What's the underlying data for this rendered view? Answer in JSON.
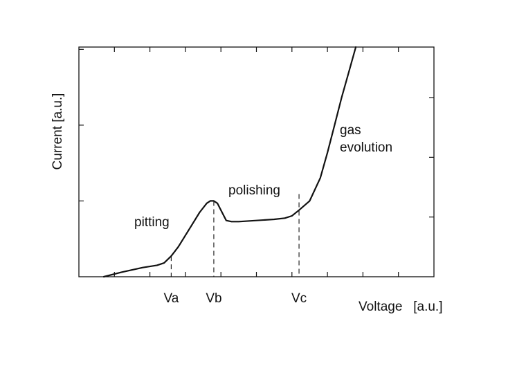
{
  "chart_data": {
    "type": "line",
    "title": "",
    "xlabel": "Voltage   [a.u.]",
    "ylabel": "Current [a.u.]",
    "xlim": [
      0,
      10
    ],
    "ylim": [
      0,
      10
    ],
    "grid": false,
    "x_marks": [
      {
        "label": "Va",
        "x": 2.6,
        "y": 0.9
      },
      {
        "label": "Vb",
        "x": 3.8,
        "y": 3.3
      },
      {
        "label": "Vc",
        "x": 6.2,
        "y": 3.6
      }
    ],
    "region_labels": [
      "pitting",
      "polishing",
      "gas",
      "evolution"
    ],
    "series": [
      {
        "x": [
          0.7,
          1.2,
          1.8,
          2.2,
          2.4,
          2.6,
          2.8,
          3.0,
          3.2,
          3.4,
          3.6,
          3.7,
          3.8,
          3.9,
          4.0,
          4.15,
          4.3,
          4.5,
          5.0,
          5.5,
          5.8,
          6.0,
          6.2,
          6.5,
          6.8,
          7.0,
          7.2,
          7.4,
          7.6,
          7.8
        ],
        "y": [
          0.0,
          0.2,
          0.4,
          0.5,
          0.6,
          0.9,
          1.3,
          1.8,
          2.3,
          2.8,
          3.2,
          3.3,
          3.3,
          3.2,
          2.9,
          2.45,
          2.4,
          2.4,
          2.45,
          2.5,
          2.55,
          2.65,
          2.9,
          3.3,
          4.3,
          5.4,
          6.6,
          7.8,
          8.9,
          10.0
        ]
      }
    ]
  }
}
